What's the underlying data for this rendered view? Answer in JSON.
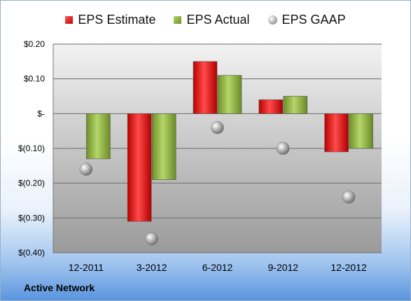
{
  "company": "Active Network",
  "chart_data": {
    "type": "bar",
    "categories": [
      "12-2011",
      "3-2012",
      "6-2012",
      "9-2012",
      "12-2012"
    ],
    "series": [
      {
        "name": "EPS Estimate",
        "type": "bar",
        "color": "#d40000",
        "values": [
          null,
          -0.31,
          0.15,
          0.04,
          -0.11
        ]
      },
      {
        "name": "EPS Actual",
        "type": "bar",
        "color": "#8fb045",
        "values": [
          -0.13,
          -0.19,
          0.11,
          0.05,
          -0.1
        ]
      },
      {
        "name": "EPS GAAP",
        "type": "scatter",
        "color": "#a8a8a8",
        "values": [
          -0.16,
          -0.36,
          -0.04,
          -0.1,
          -0.24
        ]
      }
    ],
    "ylim": [
      -0.4,
      0.2
    ],
    "yticks": [
      0.2,
      0.1,
      0,
      -0.1,
      -0.2,
      -0.3,
      -0.4
    ],
    "ytick_labels": [
      "$0.20",
      "$0.10",
      "$-",
      "$(0.10)",
      "$(0.20)",
      "$(0.30)",
      "$(0.40)"
    ],
    "grid": true,
    "legend": "top"
  }
}
